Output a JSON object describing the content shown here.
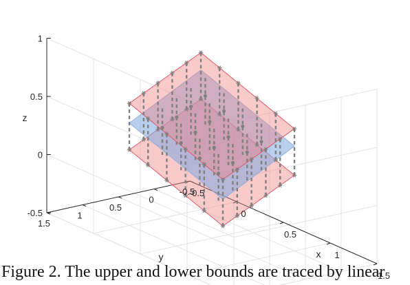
{
  "chart_data": {
    "type": "surface3d",
    "title": "",
    "xlabel": "x",
    "ylabel": "y",
    "zlabel": "z",
    "xlim": [
      -0.5,
      1.5
    ],
    "ylim": [
      -0.5,
      1.5
    ],
    "zlim": [
      -0.5,
      1
    ],
    "xticks": [
      "-0.5",
      "0",
      "0.5",
      "1",
      "1.5"
    ],
    "yticks": [
      "-0.5",
      "0",
      "0.5",
      "1",
      "1.5"
    ],
    "zticks": [
      "-0.5",
      "0",
      "0.5",
      "1"
    ],
    "grid": true,
    "surfaces": [
      {
        "role": "upper-bound",
        "color": "#f08080",
        "x": [
          0,
          1
        ],
        "y": [
          0,
          1
        ],
        "z": [
          [
            0.85,
            0.55
          ],
          [
            0.55,
            0.25
          ]
        ]
      },
      {
        "role": "estimate",
        "color": "#7fa7e0",
        "x": [
          0,
          1
        ],
        "y": [
          0,
          1
        ],
        "z": [
          [
            0.7,
            0.38
          ],
          [
            0.4,
            0.08
          ]
        ]
      },
      {
        "role": "lower-bound",
        "color": "#f08080",
        "x": [
          0,
          1
        ],
        "y": [
          0,
          1
        ],
        "z": [
          [
            0.45,
            0.15
          ],
          [
            0.15,
            -0.15
          ]
        ]
      }
    ],
    "samples": {
      "marker": "*",
      "color": "#808080",
      "grid_x": [
        0,
        0.2,
        0.4,
        0.6,
        0.8,
        1.0
      ],
      "grid_y": [
        0,
        0.2,
        0.4,
        0.6,
        0.8,
        1.0
      ]
    }
  },
  "caption": "Figure 2. The upper and lower bounds are traced by linear"
}
